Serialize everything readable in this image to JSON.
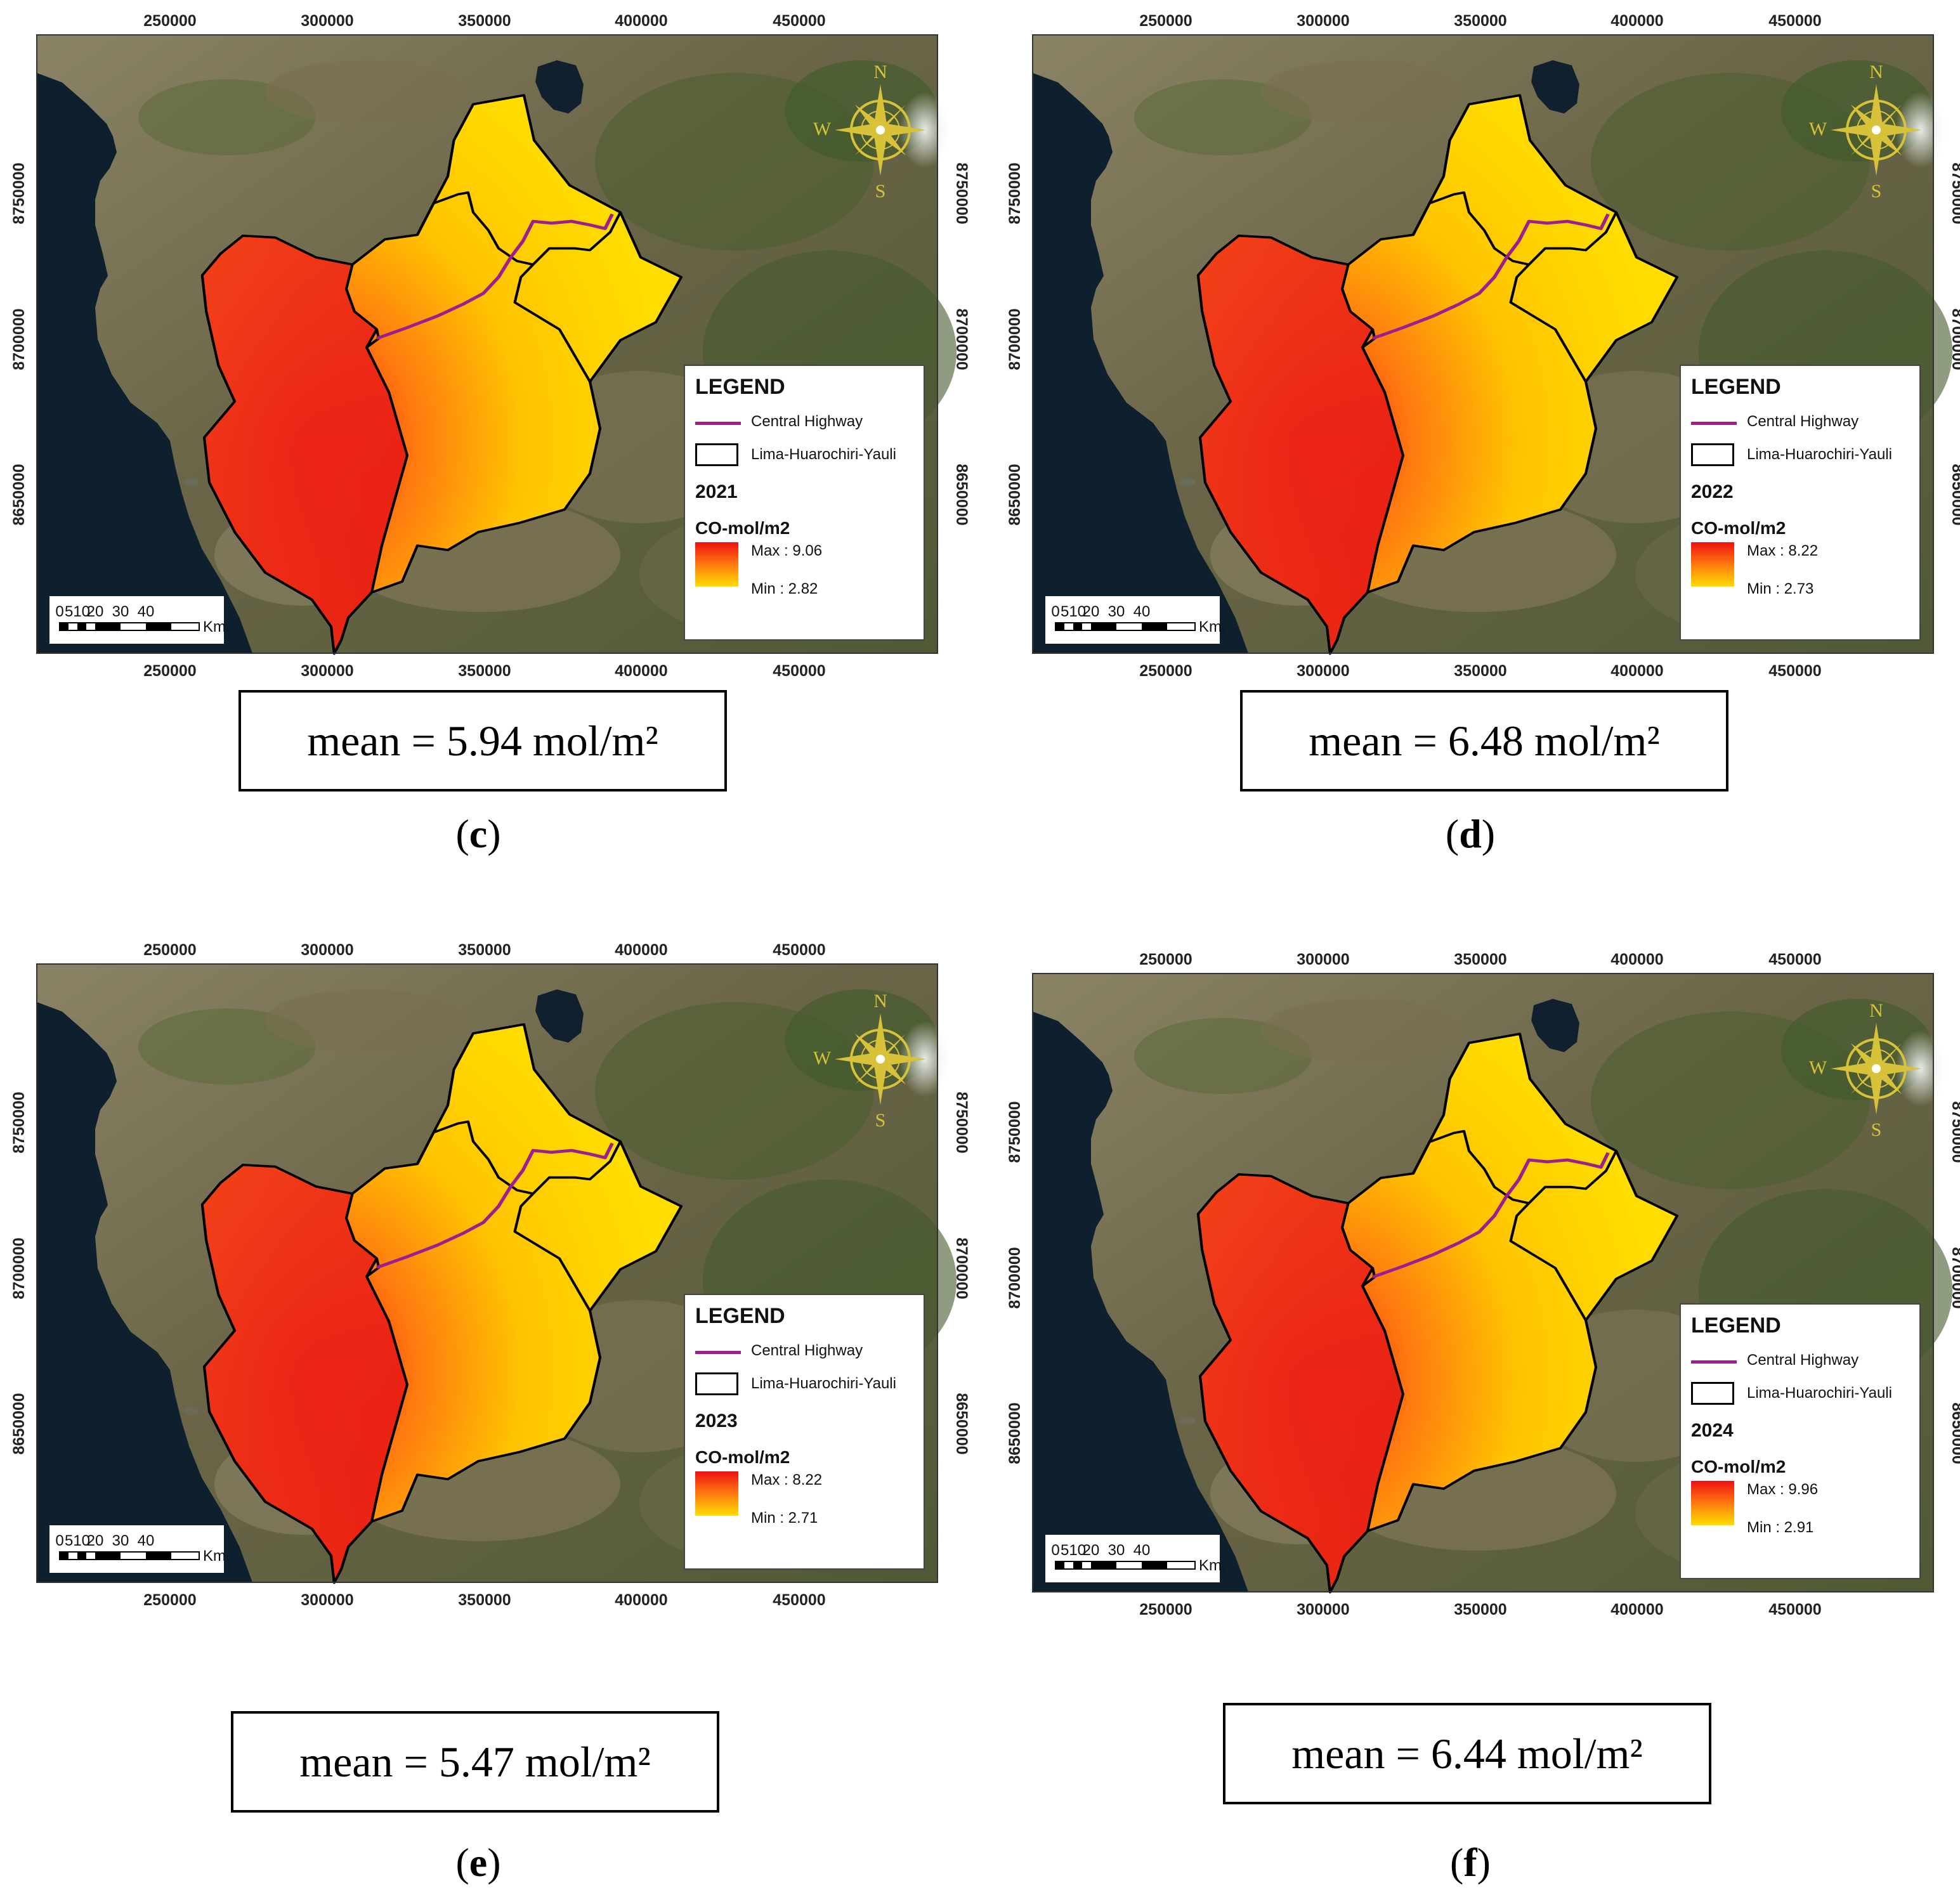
{
  "axes": {
    "x_ticks": [
      "250000",
      "300000",
      "350000",
      "400000",
      "450000"
    ],
    "y_ticks": [
      "8750000",
      "8700000",
      "8650000"
    ]
  },
  "compass": {
    "n": "N",
    "w": "W",
    "s": "S"
  },
  "scale_bar": {
    "ticks": [
      "0",
      "510",
      "20",
      "30",
      "40"
    ],
    "unit": "Km."
  },
  "legend_common": {
    "title": "LEGEND",
    "road_label": "Central Highway",
    "boundary_label": "Lima-Huarochiri-Yauli",
    "variable": "CO-mol/m2"
  },
  "colors": {
    "ramp_high": "#ee1111",
    "ramp_mid": "#ff7a10",
    "ramp_low": "#ffdd00",
    "road": "#9b1f8f",
    "boundary": "#000000",
    "ocean": "#0e1f2e",
    "land": "#6f6a4c",
    "compass": "#d8c23a"
  },
  "panels": [
    {
      "id": "c",
      "letter": "c",
      "year": "2021",
      "max": "Max : 9.06",
      "min": "Min : 2.82",
      "mean": "mean = 5.94 mol/m²"
    },
    {
      "id": "d",
      "letter": "d",
      "year": "2022",
      "max": "Max : 8.22",
      "min": "Min : 2.73",
      "mean": "mean = 6.48 mol/m²"
    },
    {
      "id": "e",
      "letter": "e",
      "year": "2023",
      "max": "Max : 8.22",
      "min": "Min : 2.71",
      "mean": "mean = 5.47 mol/m²"
    },
    {
      "id": "f",
      "letter": "f",
      "year": "2024",
      "max": "Max : 9.96",
      "min": "Min : 2.91",
      "mean": "mean = 6.44 mol/m²"
    }
  ]
}
